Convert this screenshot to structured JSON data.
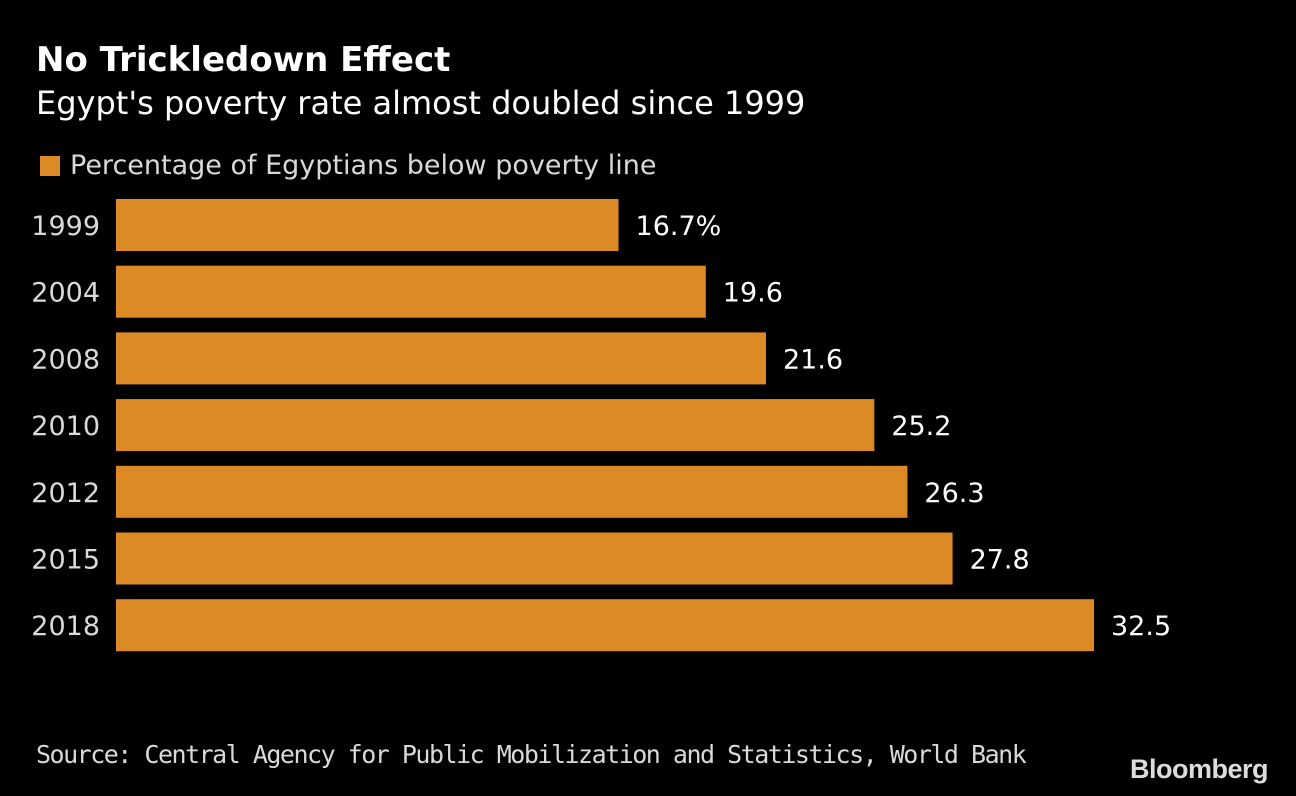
{
  "chart_data": {
    "type": "bar",
    "orientation": "horizontal",
    "title": "No Trickledown Effect",
    "subtitle": "Egypt's poverty rate almost doubled since 1999",
    "categories": [
      "1999",
      "2004",
      "2008",
      "2010",
      "2012",
      "2015",
      "2018"
    ],
    "series": [
      {
        "name": "Percentage of Egyptians below poverty line",
        "values": [
          16.7,
          19.6,
          21.6,
          25.2,
          26.3,
          27.8,
          32.5
        ],
        "color": "#DC8A26"
      }
    ],
    "data_labels": [
      "16.7%",
      "19.6",
      "21.6",
      "25.2",
      "26.3",
      "27.8",
      "32.5"
    ],
    "xlim": [
      0,
      32.5
    ],
    "grid": false,
    "legend_position": "top-left",
    "source": "Source: Central Agency for Public Mobilization and Statistics, World Bank"
  },
  "branding": {
    "logo": "Bloomberg"
  },
  "colors": {
    "background": "#000000",
    "bar": "#DC8A26",
    "text": "#D9D9D9"
  }
}
